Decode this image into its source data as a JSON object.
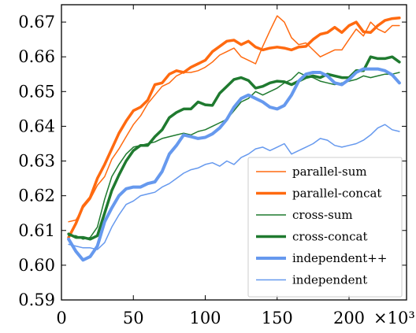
{
  "chart_data": {
    "type": "line",
    "title": "",
    "xlabel": "",
    "ylabel": "",
    "x_multiplier_label": "×10³",
    "xlim": [
      0,
      240
    ],
    "ylim": [
      0.59,
      0.675
    ],
    "grid": false,
    "legend_position": "lower-right",
    "x": [
      5,
      10,
      15,
      20,
      25,
      30,
      35,
      40,
      45,
      50,
      55,
      60,
      65,
      70,
      75,
      80,
      85,
      90,
      95,
      100,
      105,
      110,
      115,
      120,
      125,
      130,
      135,
      140,
      145,
      150,
      155,
      160,
      165,
      170,
      175,
      180,
      185,
      190,
      195,
      200,
      205,
      210,
      215,
      220,
      225,
      230,
      235
    ],
    "x_ticks": [
      0,
      50,
      100,
      150,
      200
    ],
    "x_tick_labels": [
      "0",
      "50",
      "100",
      "150",
      "200"
    ],
    "y_ticks": [
      0.59,
      0.6,
      0.61,
      0.62,
      0.63,
      0.64,
      0.65,
      0.66,
      0.67
    ],
    "y_tick_labels": [
      "0.59",
      "0.60",
      "0.61",
      "0.62",
      "0.63",
      "0.64",
      "0.65",
      "0.66",
      "0.67"
    ],
    "series": [
      {
        "name": "parallel-sum",
        "color": "#ff6a10",
        "width": 1.5,
        "values": [
          0.6125,
          0.613,
          0.6165,
          0.619,
          0.623,
          0.6255,
          0.6305,
          0.6335,
          0.637,
          0.6405,
          0.643,
          0.6465,
          0.649,
          0.6515,
          0.6525,
          0.6545,
          0.6555,
          0.6555,
          0.656,
          0.657,
          0.6585,
          0.6605,
          0.6615,
          0.6625,
          0.66,
          0.659,
          0.658,
          0.663,
          0.6675,
          0.6718,
          0.67,
          0.6655,
          0.6635,
          0.664,
          0.662,
          0.66,
          0.661,
          0.662,
          0.662,
          0.665,
          0.668,
          0.666,
          0.67,
          0.668,
          0.667,
          0.669,
          0.669
        ]
      },
      {
        "name": "parallel-concat",
        "color": "#ff6a10",
        "width": 3.5,
        "values": [
          0.608,
          0.612,
          0.617,
          0.6195,
          0.625,
          0.629,
          0.6335,
          0.638,
          0.6415,
          0.6445,
          0.6455,
          0.6475,
          0.652,
          0.6525,
          0.655,
          0.656,
          0.6555,
          0.657,
          0.658,
          0.659,
          0.6615,
          0.663,
          0.6645,
          0.6648,
          0.6635,
          0.6645,
          0.6628,
          0.662,
          0.6625,
          0.6628,
          0.6625,
          0.662,
          0.6628,
          0.663,
          0.665,
          0.6665,
          0.667,
          0.6685,
          0.667,
          0.669,
          0.67,
          0.6672,
          0.667,
          0.669,
          0.6705,
          0.671,
          0.6712
        ]
      },
      {
        "name": "cross-sum",
        "color": "#1f7a2f",
        "width": 1.5,
        "values": [
          0.6085,
          0.6085,
          0.6075,
          0.608,
          0.611,
          0.619,
          0.6255,
          0.629,
          0.632,
          0.634,
          0.6345,
          0.635,
          0.6355,
          0.6365,
          0.637,
          0.6375,
          0.638,
          0.6375,
          0.6385,
          0.639,
          0.64,
          0.641,
          0.642,
          0.6445,
          0.647,
          0.648,
          0.65,
          0.649,
          0.65,
          0.651,
          0.6525,
          0.6535,
          0.6555,
          0.6545,
          0.654,
          0.653,
          0.6525,
          0.652,
          0.6525,
          0.653,
          0.6535,
          0.6545,
          0.654,
          0.6545,
          0.655,
          0.655,
          0.6555
        ]
      },
      {
        "name": "cross-concat",
        "color": "#1f7a2f",
        "width": 3.5,
        "values": [
          0.609,
          0.608,
          0.608,
          0.6075,
          0.6085,
          0.615,
          0.6215,
          0.626,
          0.63,
          0.633,
          0.6345,
          0.6345,
          0.637,
          0.639,
          0.6425,
          0.644,
          0.645,
          0.645,
          0.647,
          0.6462,
          0.646,
          0.6495,
          0.6515,
          0.6535,
          0.654,
          0.6532,
          0.651,
          0.6515,
          0.6525,
          0.653,
          0.6528,
          0.652,
          0.653,
          0.654,
          0.6545,
          0.654,
          0.655,
          0.6545,
          0.654,
          0.654,
          0.656,
          0.656,
          0.66,
          0.6595,
          0.6595,
          0.66,
          0.6585
        ]
      },
      {
        "name": "independent++",
        "color": "#6699ee",
        "width": 4,
        "values": [
          0.6075,
          0.604,
          0.6015,
          0.6025,
          0.6055,
          0.6125,
          0.6165,
          0.62,
          0.622,
          0.6225,
          0.6225,
          0.6235,
          0.624,
          0.627,
          0.632,
          0.6345,
          0.6375,
          0.637,
          0.6365,
          0.6368,
          0.6378,
          0.6395,
          0.642,
          0.6455,
          0.648,
          0.649,
          0.648,
          0.647,
          0.6455,
          0.645,
          0.646,
          0.649,
          0.653,
          0.655,
          0.6555,
          0.6555,
          0.6545,
          0.6525,
          0.652,
          0.6535,
          0.6555,
          0.6565,
          0.6565,
          0.6565,
          0.656,
          0.6548,
          0.6525
        ]
      },
      {
        "name": "independent",
        "color": "#6699ee",
        "width": 1.5,
        "values": [
          0.606,
          0.6055,
          0.605,
          0.605,
          0.6045,
          0.6065,
          0.611,
          0.6145,
          0.6175,
          0.6185,
          0.62,
          0.6205,
          0.621,
          0.6225,
          0.6235,
          0.625,
          0.6265,
          0.6275,
          0.628,
          0.629,
          0.6295,
          0.6285,
          0.63,
          0.629,
          0.631,
          0.632,
          0.6335,
          0.634,
          0.633,
          0.634,
          0.635,
          0.632,
          0.633,
          0.634,
          0.635,
          0.6365,
          0.636,
          0.6345,
          0.634,
          0.6345,
          0.635,
          0.636,
          0.6375,
          0.6395,
          0.6405,
          0.639,
          0.6385
        ]
      }
    ]
  }
}
